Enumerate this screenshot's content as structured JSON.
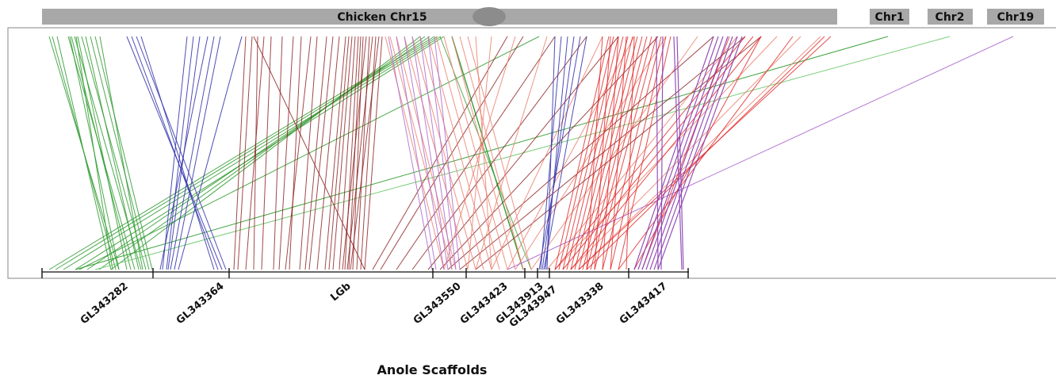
{
  "chicken_chromosome": {
    "label": "Chicken Chr15"
  },
  "other_chromosomes": [
    {
      "label": "Chr1"
    },
    {
      "label": "Chr2"
    },
    {
      "label": "Chr19"
    }
  ],
  "x_axis_title": "Anole Scaffolds",
  "scaffolds": [
    {
      "label": "GL343282"
    },
    {
      "label": "GL343364"
    },
    {
      "label": "LGb"
    },
    {
      "label": "GL343550"
    },
    {
      "label": "GL343423"
    },
    {
      "label": "GL343913"
    },
    {
      "label": "GL343947"
    },
    {
      "label": "GL343338"
    },
    {
      "label": "GL343417"
    }
  ],
  "colors": {
    "green": "#2e9a2e",
    "blue": "#3a3ab0",
    "darkred": "#8b1a1a",
    "red": "#e02020",
    "salmon": "#ec8070",
    "purple": "#8a3fb0",
    "lightgreen": "#6cc86c",
    "lavender": "#b070d0"
  }
}
